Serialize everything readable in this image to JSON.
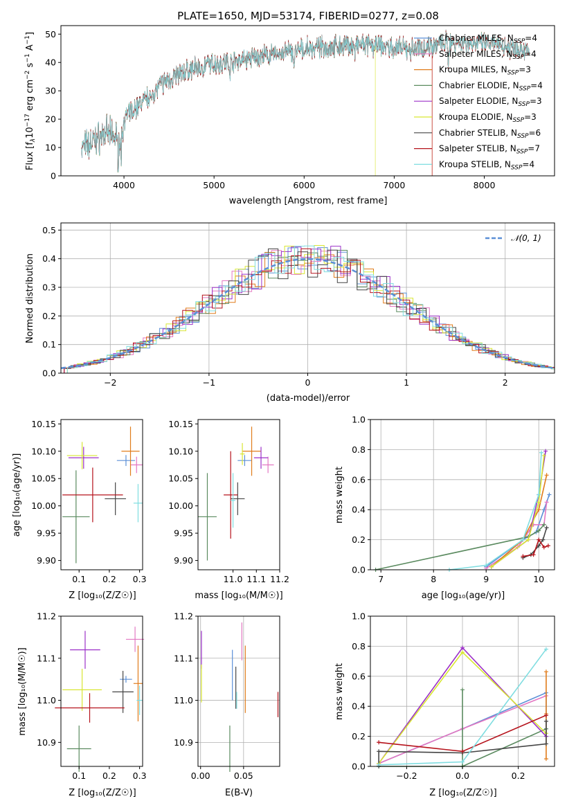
{
  "chart_data": [
    {
      "type": "line",
      "id": "spectrum",
      "title": "PLATE=1650, MJD=53174, FIBERID=0277, z=0.08",
      "xlabel": "wavelength [Angstrom, rest frame]",
      "ylabel_parts": {
        "main": "Flux [f",
        "sub": "λ",
        "mid": "10",
        "sup1": "−17",
        "mid2": " erg cm",
        "sup2": "−2",
        "mid3": " s",
        "sup3": "−1",
        "mid4": " A",
        "sup4": "−1",
        "end": "]"
      },
      "xlim": [
        3300,
        8780
      ],
      "ylim": [
        0,
        53
      ],
      "xticks": [
        4000,
        5000,
        6000,
        7000,
        8000
      ],
      "yticks": [
        0,
        10,
        20,
        30,
        40,
        50
      ],
      "legend_position": "right",
      "series": [
        {
          "name_main": "Chabrier MILES, N",
          "name_sub": "SSP",
          "name_end": "=4",
          "color": "#5b8fd6"
        },
        {
          "name_main": "Salpeter MILES, N",
          "name_sub": "SSP",
          "name_end": "=4",
          "color": "#e377c2"
        },
        {
          "name_main": "Kroupa MILES, N",
          "name_sub": "SSP",
          "name_end": "=3",
          "color": "#e07b1a"
        },
        {
          "name_main": "Chabrier ELODIE, N",
          "name_sub": "SSP",
          "name_end": "=4",
          "color": "#5a8a5f"
        },
        {
          "name_main": "Salpeter ELODIE, N",
          "name_sub": "SSP",
          "name_end": "=3",
          "color": "#9b30c8"
        },
        {
          "name_main": "Kroupa ELODIE, N",
          "name_sub": "SSP",
          "name_end": "=3",
          "color": "#d8e632"
        },
        {
          "name_main": "Chabrier STELIB, N",
          "name_sub": "SSP",
          "name_end": "=6",
          "color": "#444444"
        },
        {
          "name_main": "Salpeter STELIB, N",
          "name_sub": "SSP",
          "name_end": "=7",
          "color": "#b5121b"
        },
        {
          "name_main": "Kroupa STELIB, N",
          "name_sub": "SSP",
          "name_end": "=4",
          "color": "#7fdde0"
        }
      ],
      "continuum": {
        "x": [
          3530,
          3600,
          3700,
          3800,
          3900,
          3960,
          4000,
          4100,
          4200,
          4300,
          4400,
          4500,
          4700,
          4900,
          5100,
          5300,
          5500,
          5700,
          5900,
          6100,
          6300,
          6500,
          6700,
          6900,
          7000,
          7200,
          7400,
          7600,
          7800,
          8000,
          8200,
          8400,
          8500
        ],
        "y": [
          10,
          11,
          13,
          15,
          14,
          12,
          20,
          23,
          26,
          29,
          32,
          34,
          37,
          39,
          40,
          41,
          42,
          43,
          44,
          45,
          45.5,
          46,
          46,
          45.5,
          45,
          44.5,
          46,
          47,
          47,
          46.5,
          46,
          45,
          44
        ]
      },
      "data_color": "#777777"
    },
    {
      "type": "line",
      "id": "residual_hist",
      "xlabel": "(data-model)/error",
      "ylabel": "Normed distribution",
      "xlim": [
        -2.5,
        2.5
      ],
      "ylim": [
        0,
        0.525
      ],
      "xticks": [
        -2,
        -1,
        0,
        1,
        2
      ],
      "yticks": [
        0.0,
        0.1,
        0.2,
        0.3,
        0.4,
        0.5
      ],
      "grid": true,
      "legend": "𝒩(0, 1)",
      "legend_position": "top-right",
      "normal_color": "#5b8fd6",
      "bin_width": 0.1
    },
    {
      "type": "scatter",
      "id": "age_vs_Z",
      "xlabel": "Z [log₁₀(Z/Z☉)]",
      "ylabel": "age  [log₁₀(age/yr)]",
      "xlim": [
        0.04,
        0.31
      ],
      "ylim": [
        9.883,
        10.158
      ],
      "xticks": [
        0.1,
        0.2,
        0.3
      ],
      "yticks": [
        9.9,
        9.95,
        10.0,
        10.05,
        10.1,
        10.15
      ],
      "points": [
        {
          "x": 0.255,
          "y": 10.083,
          "xerr": 0.03,
          "yerr": 0.01,
          "color": "#5b8fd6"
        },
        {
          "x": 0.29,
          "y": 10.075,
          "xerr": 0.02,
          "yerr": 0.015,
          "color": "#e377c2"
        },
        {
          "x": 0.27,
          "y": 10.1,
          "xerr": 0.03,
          "yerr": 0.045,
          "color": "#e07b1a"
        },
        {
          "x": 0.09,
          "y": 9.98,
          "xerr": 0.045,
          "yerr": 0.085,
          "color": "#5a8a5f"
        },
        {
          "x": 0.115,
          "y": 10.088,
          "xerr": 0.05,
          "yerr": 0.02,
          "color": "#9b30c8"
        },
        {
          "x": 0.11,
          "y": 10.092,
          "xerr": 0.05,
          "yerr": 0.025,
          "color": "#d8e632"
        },
        {
          "x": 0.22,
          "y": 10.013,
          "xerr": 0.035,
          "yerr": 0.03,
          "color": "#444444"
        },
        {
          "x": 0.145,
          "y": 10.02,
          "xerr": 0.1,
          "yerr": 0.05,
          "color": "#b5121b"
        },
        {
          "x": 0.295,
          "y": 10.005,
          "xerr": 0.015,
          "yerr": 0.035,
          "color": "#7fdde0"
        }
      ]
    },
    {
      "type": "scatter",
      "id": "age_vs_mass",
      "xlabel": "mass [log₁₀(M/M☉)]",
      "xlim": [
        10.85,
        11.2
      ],
      "ylim": [
        9.883,
        10.158
      ],
      "xticks": [
        11.0,
        11.1,
        11.2
      ],
      "yticks": [
        9.9,
        9.95,
        10.0,
        10.05,
        10.1,
        10.15
      ],
      "points": [
        {
          "x": 11.05,
          "y": 10.083,
          "xerr": 0.03,
          "yerr": 0.01,
          "color": "#5b8fd6"
        },
        {
          "x": 11.15,
          "y": 10.075,
          "xerr": 0.025,
          "yerr": 0.015,
          "color": "#e377c2"
        },
        {
          "x": 11.08,
          "y": 10.1,
          "xerr": 0.04,
          "yerr": 0.045,
          "color": "#e07b1a"
        },
        {
          "x": 10.89,
          "y": 9.98,
          "xerr": 0.04,
          "yerr": 0.08,
          "color": "#5a8a5f"
        },
        {
          "x": 11.12,
          "y": 10.088,
          "xerr": 0.03,
          "yerr": 0.02,
          "color": "#9b30c8"
        },
        {
          "x": 11.04,
          "y": 10.095,
          "xerr": 0.01,
          "yerr": 0.02,
          "color": "#d8e632"
        },
        {
          "x": 11.02,
          "y": 10.013,
          "xerr": 0.03,
          "yerr": 0.03,
          "color": "#444444"
        },
        {
          "x": 10.99,
          "y": 10.02,
          "xerr": 0.03,
          "yerr": 0.08,
          "color": "#b5121b"
        },
        {
          "x": 11.0,
          "y": 10.01,
          "xerr": 0.01,
          "yerr": 0.05,
          "color": "#7fdde0"
        }
      ]
    },
    {
      "type": "line",
      "id": "mass_weight_vs_age",
      "xlabel": "age  [log₁₀(age/yr)]",
      "ylabel": "mass weight",
      "xlim": [
        6.8,
        10.3
      ],
      "ylim": [
        0,
        1.0
      ],
      "xticks": [
        7,
        8,
        9,
        10
      ],
      "yticks": [
        0.0,
        0.2,
        0.4,
        0.6,
        0.8,
        1.0
      ],
      "grid": true,
      "series": [
        {
          "color": "#5b8fd6",
          "x": [
            9.0,
            9.7,
            9.95,
            10.1,
            10.2
          ],
          "y": [
            0.02,
            0.2,
            0.25,
            0.4,
            0.5
          ]
        },
        {
          "color": "#e377c2",
          "x": [
            9.0,
            9.6,
            9.9,
            10.1,
            10.15
          ],
          "y": [
            0.01,
            0.15,
            0.3,
            0.3,
            0.45
          ]
        },
        {
          "color": "#e07b1a",
          "x": [
            9.1,
            9.7,
            10.0,
            10.15
          ],
          "y": [
            0.02,
            0.2,
            0.4,
            0.63
          ]
        },
        {
          "color": "#5a8a5f",
          "x": [
            6.9,
            9.8,
            10.0,
            10.1
          ],
          "y": [
            0.0,
            0.22,
            0.26,
            0.3
          ]
        },
        {
          "color": "#9b30c8",
          "x": [
            9.1,
            9.8,
            10.0,
            10.13
          ],
          "y": [
            0.02,
            0.2,
            0.5,
            0.79
          ]
        },
        {
          "color": "#d8e632",
          "x": [
            9.1,
            9.8,
            10.0,
            10.1
          ],
          "y": [
            0.02,
            0.2,
            0.45,
            0.76
          ]
        },
        {
          "color": "#444444",
          "x": [
            9.7,
            9.85,
            10.0,
            10.08,
            10.15
          ],
          "y": [
            0.08,
            0.1,
            0.16,
            0.2,
            0.28
          ]
        },
        {
          "color": "#b5121b",
          "x": [
            9.7,
            9.9,
            10.0,
            10.1,
            10.18
          ],
          "y": [
            0.09,
            0.1,
            0.2,
            0.15,
            0.16
          ]
        },
        {
          "color": "#7fdde0",
          "x": [
            8.3,
            9.0,
            9.7,
            10.0,
            10.05
          ],
          "y": [
            0.0,
            0.03,
            0.2,
            0.5,
            0.78
          ]
        }
      ]
    },
    {
      "type": "scatter",
      "id": "mass_vs_Z",
      "xlabel": "Z [log₁₀(Z/Z☉)]",
      "ylabel": "mass [log₁₀(M/M☉)]",
      "xlim": [
        0.04,
        0.31
      ],
      "ylim": [
        10.843,
        11.2
      ],
      "xticks": [
        0.1,
        0.2,
        0.3
      ],
      "yticks": [
        10.9,
        11.0,
        11.1,
        11.2
      ],
      "points": [
        {
          "x": 0.255,
          "y": 11.05,
          "xerr": 0.02,
          "yerr": 0.008,
          "color": "#5b8fd6"
        },
        {
          "x": 0.285,
          "y": 11.145,
          "xerr": 0.03,
          "yerr": 0.03,
          "color": "#e377c2"
        },
        {
          "x": 0.295,
          "y": 11.04,
          "xerr": 0.015,
          "yerr": 0.09,
          "color": "#e07b1a"
        },
        {
          "x": 0.1,
          "y": 10.885,
          "xerr": 0.04,
          "yerr": 0.055,
          "color": "#5a8a5f"
        },
        {
          "x": 0.12,
          "y": 11.12,
          "xerr": 0.05,
          "yerr": 0.045,
          "color": "#9b30c8"
        },
        {
          "x": 0.11,
          "y": 11.025,
          "xerr": 0.065,
          "yerr": 0.05,
          "color": "#d8e632"
        },
        {
          "x": 0.245,
          "y": 11.02,
          "xerr": 0.035,
          "yerr": 0.05,
          "color": "#444444"
        },
        {
          "x": 0.135,
          "y": 10.982,
          "xerr": 0.115,
          "yerr": 0.035,
          "color": "#b5121b"
        },
        {
          "x": 0.3,
          "y": 11.0,
          "xerr": 0.01,
          "yerr": 0.035,
          "color": "#7fdde0"
        }
      ]
    },
    {
      "type": "scatter",
      "id": "mass_vs_ebv",
      "xlabel": "E(B-V)",
      "xlim": [
        -0.003,
        0.092
      ],
      "ylim": [
        10.843,
        11.2
      ],
      "xticks": [
        0.0,
        0.05
      ],
      "xtick_labels": [
        "0.00",
        "0.05"
      ],
      "yticks": [
        10.9,
        11.0,
        11.1,
        11.2
      ],
      "points": [
        {
          "x": 0.037,
          "y": 11.06,
          "yerr": 0.06,
          "color": "#5b8fd6"
        },
        {
          "x": 0.048,
          "y": 11.14,
          "yerr": 0.045,
          "color": "#e377c2"
        },
        {
          "x": 0.052,
          "y": 11.05,
          "yerr": 0.08,
          "color": "#e07b1a"
        },
        {
          "x": 0.034,
          "y": 10.885,
          "yerr": 0.055,
          "color": "#5a8a5f"
        },
        {
          "x": 0.001,
          "y": 11.12,
          "yerr": 0.045,
          "color": "#9b30c8"
        },
        {
          "x": 0.001,
          "y": 11.04,
          "yerr": 0.045,
          "color": "#d8e632"
        },
        {
          "x": 0.041,
          "y": 11.03,
          "yerr": 0.05,
          "color": "#444444"
        },
        {
          "x": 0.09,
          "y": 10.99,
          "yerr": 0.03,
          "color": "#b5121b"
        },
        {
          "x": 0.042,
          "y": 11.0,
          "yerr": 0.02,
          "color": "#7fdde0"
        }
      ]
    },
    {
      "type": "line",
      "id": "mass_weight_vs_Z",
      "xlabel": "Z [log₁₀(Z/Z☉)]",
      "ylabel": "mass weight",
      "xlim": [
        -0.33,
        0.33
      ],
      "ylim": [
        0,
        1.0
      ],
      "xticks": [
        -0.2,
        0.0,
        0.2
      ],
      "xtick_labels": [
        "−0.2",
        "0.0",
        "0.2"
      ],
      "yticks": [
        0.0,
        0.2,
        0.4,
        0.6,
        0.8,
        1.0
      ],
      "grid": true,
      "series": [
        {
          "color": "#5b8fd6",
          "x": [
            -0.3,
            0.0,
            0.3,
            0.3
          ],
          "y": [
            0.02,
            0.25,
            0.49,
            0.2
          ]
        },
        {
          "color": "#e377c2",
          "x": [
            -0.3,
            0.0,
            0.3
          ],
          "y": [
            0.02,
            0.25,
            0.47
          ]
        },
        {
          "color": "#e07b1a",
          "x": [
            0.3,
            0.3,
            0.3
          ],
          "y": [
            0.05,
            0.35,
            0.63
          ]
        },
        {
          "color": "#5a8a5f",
          "x": [
            -0.3,
            0.0,
            0.0,
            0.0,
            0.3
          ],
          "y": [
            0.0,
            0.0,
            0.51,
            0.0,
            0.25
          ]
        },
        {
          "color": "#9b30c8",
          "x": [
            -0.3,
            0.0,
            0.3
          ],
          "y": [
            0.02,
            0.79,
            0.2
          ]
        },
        {
          "color": "#d8e632",
          "x": [
            -0.3,
            0.0,
            0.3
          ],
          "y": [
            0.02,
            0.76,
            0.22
          ]
        },
        {
          "color": "#444444",
          "x": [
            -0.3,
            -0.3,
            0.0,
            0.3,
            0.3
          ],
          "y": [
            0.0,
            0.1,
            0.09,
            0.15,
            0.3
          ]
        },
        {
          "color": "#b5121b",
          "x": [
            -0.3,
            0.0,
            0.3
          ],
          "y": [
            0.16,
            0.1,
            0.34
          ]
        },
        {
          "color": "#7fdde0",
          "x": [
            -0.3,
            0.0,
            0.3
          ],
          "y": [
            0.01,
            0.03,
            0.78
          ]
        }
      ]
    }
  ]
}
